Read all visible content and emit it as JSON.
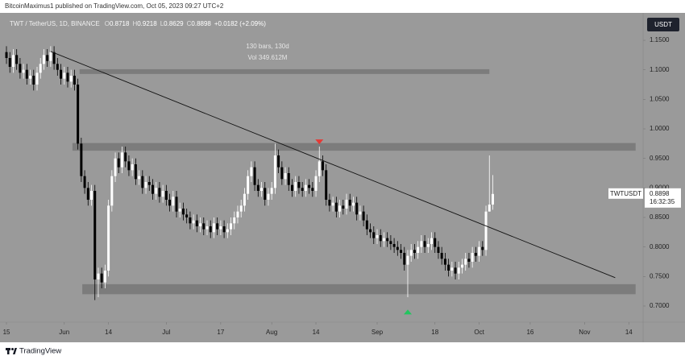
{
  "header": {
    "publisher": "BitcoinMaximus1 published on TradingView.com, Oct 05, 2023 09:27 UTC+2"
  },
  "footer": {
    "brand": "TradingView"
  },
  "chart_data": {
    "type": "candlestick",
    "symbol": "TWT / TetherUS, 1D, BINANCE",
    "ohlc_labels": [
      "O",
      "H",
      "L",
      "C"
    ],
    "change": "+0.0182 (+2.09%)",
    "currency_button": "USDT",
    "measure_annotation": [
      "130 bars, 130d",
      "Vol 349.612M"
    ],
    "price_tag": {
      "symbol": "TWTUSDT",
      "countdown": "16:32:35"
    },
    "up_color": "#ffffff",
    "down_color": "#000000",
    "background": "#9a9a9a",
    "zone_color": "#7c7c7c",
    "trendline_color": "#111111",
    "open": [
      1.13,
      1.12,
      1.105,
      1.125,
      1.11,
      1.095,
      1.1,
      1.085,
      1.09,
      1.075,
      1.095,
      1.11,
      1.125,
      1.115,
      1.13,
      1.11,
      1.1,
      1.085,
      1.095,
      1.08,
      1.09,
      1.075,
      0.975,
      0.92,
      0.9,
      0.88,
      0.895,
      0.745,
      0.755,
      0.74,
      0.76,
      0.87,
      0.92,
      0.95,
      0.935,
      0.96,
      0.945,
      0.93,
      0.94,
      0.915,
      0.92,
      0.9,
      0.91,
      0.905,
      0.89,
      0.9,
      0.885,
      0.895,
      0.88,
      0.87,
      0.885,
      0.86,
      0.865,
      0.855,
      0.85,
      0.84,
      0.845,
      0.835,
      0.84,
      0.83,
      0.835,
      0.825,
      0.84,
      0.83,
      0.835,
      0.825,
      0.83,
      0.84,
      0.85,
      0.86,
      0.87,
      0.89,
      0.92,
      0.935,
      0.905,
      0.895,
      0.9,
      0.88,
      0.89,
      0.9,
      0.955,
      0.935,
      0.915,
      0.925,
      0.905,
      0.895,
      0.91,
      0.9,
      0.895,
      0.905,
      0.9,
      0.895,
      0.92,
      0.945,
      0.93,
      0.88,
      0.87,
      0.875,
      0.86,
      0.87,
      0.865,
      0.88,
      0.87,
      0.875,
      0.855,
      0.86,
      0.845,
      0.83,
      0.825,
      0.815,
      0.82,
      0.81,
      0.815,
      0.81,
      0.805,
      0.8,
      0.795,
      0.79,
      0.77,
      0.785,
      0.795,
      0.79,
      0.8,
      0.81,
      0.8,
      0.805,
      0.815,
      0.8,
      0.79,
      0.78,
      0.77,
      0.76,
      0.765,
      0.755,
      0.765,
      0.77,
      0.78,
      0.775,
      0.79,
      0.785,
      0.8,
      0.795,
      0.86,
      0.8718
    ],
    "high": [
      1.14,
      1.13,
      1.135,
      1.135,
      1.12,
      1.11,
      1.11,
      1.1,
      1.1,
      1.105,
      1.12,
      1.135,
      1.135,
      1.14,
      1.14,
      1.12,
      1.11,
      1.105,
      1.105,
      1.1,
      1.1,
      1.085,
      0.985,
      0.93,
      0.91,
      0.905,
      0.905,
      0.765,
      0.765,
      0.77,
      0.88,
      0.93,
      0.96,
      0.96,
      0.97,
      0.97,
      0.955,
      0.95,
      0.95,
      0.93,
      0.93,
      0.92,
      0.92,
      0.915,
      0.91,
      0.91,
      0.905,
      0.905,
      0.89,
      0.895,
      0.895,
      0.875,
      0.875,
      0.865,
      0.86,
      0.855,
      0.855,
      0.85,
      0.85,
      0.845,
      0.845,
      0.85,
      0.85,
      0.845,
      0.845,
      0.84,
      0.85,
      0.86,
      0.87,
      0.88,
      0.9,
      0.93,
      0.945,
      0.945,
      0.915,
      0.91,
      0.91,
      0.9,
      0.91,
      0.975,
      0.965,
      0.945,
      0.935,
      0.935,
      0.915,
      0.92,
      0.92,
      0.91,
      0.915,
      0.915,
      0.91,
      0.93,
      0.97,
      0.955,
      0.94,
      0.89,
      0.885,
      0.885,
      0.88,
      0.88,
      0.89,
      0.89,
      0.885,
      0.885,
      0.87,
      0.87,
      0.855,
      0.84,
      0.835,
      0.83,
      0.83,
      0.825,
      0.825,
      0.82,
      0.815,
      0.81,
      0.805,
      0.8,
      0.795,
      0.805,
      0.805,
      0.81,
      0.82,
      0.82,
      0.815,
      0.825,
      0.825,
      0.81,
      0.8,
      0.79,
      0.78,
      0.775,
      0.775,
      0.775,
      0.78,
      0.79,
      0.79,
      0.8,
      0.8,
      0.81,
      0.81,
      0.87,
      0.955,
      0.9218
    ],
    "low": [
      1.11,
      1.095,
      1.095,
      1.1,
      1.085,
      1.085,
      1.075,
      1.075,
      1.065,
      1.065,
      1.085,
      1.1,
      1.105,
      1.105,
      1.1,
      1.09,
      1.075,
      1.075,
      1.07,
      1.07,
      1.065,
      0.965,
      0.91,
      0.89,
      0.87,
      0.87,
      0.71,
      0.715,
      0.73,
      0.73,
      0.75,
      0.86,
      0.91,
      0.925,
      0.925,
      0.935,
      0.92,
      0.92,
      0.905,
      0.905,
      0.89,
      0.89,
      0.895,
      0.88,
      0.88,
      0.875,
      0.875,
      0.87,
      0.86,
      0.86,
      0.85,
      0.85,
      0.845,
      0.84,
      0.83,
      0.83,
      0.825,
      0.825,
      0.82,
      0.82,
      0.815,
      0.815,
      0.82,
      0.82,
      0.815,
      0.815,
      0.82,
      0.83,
      0.84,
      0.85,
      0.86,
      0.88,
      0.91,
      0.895,
      0.885,
      0.885,
      0.87,
      0.87,
      0.88,
      0.89,
      0.925,
      0.905,
      0.905,
      0.895,
      0.885,
      0.885,
      0.89,
      0.885,
      0.885,
      0.89,
      0.885,
      0.885,
      0.91,
      0.92,
      0.87,
      0.86,
      0.86,
      0.85,
      0.85,
      0.855,
      0.855,
      0.86,
      0.86,
      0.845,
      0.845,
      0.835,
      0.82,
      0.815,
      0.805,
      0.805,
      0.8,
      0.8,
      0.8,
      0.795,
      0.79,
      0.785,
      0.78,
      0.76,
      0.715,
      0.775,
      0.78,
      0.78,
      0.79,
      0.79,
      0.79,
      0.795,
      0.79,
      0.78,
      0.77,
      0.76,
      0.75,
      0.75,
      0.745,
      0.745,
      0.755,
      0.76,
      0.765,
      0.765,
      0.775,
      0.775,
      0.785,
      0.785,
      0.86,
      0.8629
    ],
    "close": [
      1.12,
      1.105,
      1.125,
      1.11,
      1.095,
      1.1,
      1.085,
      1.09,
      1.075,
      1.095,
      1.11,
      1.125,
      1.115,
      1.13,
      1.11,
      1.1,
      1.085,
      1.095,
      1.08,
      1.09,
      1.075,
      0.975,
      0.92,
      0.9,
      0.88,
      0.895,
      0.745,
      0.755,
      0.74,
      0.76,
      0.87,
      0.92,
      0.95,
      0.935,
      0.96,
      0.945,
      0.93,
      0.94,
      0.915,
      0.92,
      0.9,
      0.91,
      0.905,
      0.89,
      0.9,
      0.885,
      0.895,
      0.88,
      0.87,
      0.885,
      0.86,
      0.865,
      0.855,
      0.85,
      0.84,
      0.845,
      0.835,
      0.84,
      0.83,
      0.835,
      0.825,
      0.84,
      0.83,
      0.835,
      0.825,
      0.83,
      0.84,
      0.85,
      0.86,
      0.87,
      0.89,
      0.92,
      0.935,
      0.905,
      0.895,
      0.9,
      0.88,
      0.89,
      0.9,
      0.955,
      0.935,
      0.915,
      0.925,
      0.905,
      0.895,
      0.91,
      0.9,
      0.895,
      0.905,
      0.9,
      0.895,
      0.92,
      0.945,
      0.93,
      0.88,
      0.87,
      0.875,
      0.86,
      0.87,
      0.865,
      0.88,
      0.87,
      0.875,
      0.855,
      0.86,
      0.845,
      0.83,
      0.825,
      0.815,
      0.82,
      0.81,
      0.815,
      0.81,
      0.805,
      0.8,
      0.795,
      0.79,
      0.77,
      0.785,
      0.795,
      0.79,
      0.8,
      0.81,
      0.8,
      0.805,
      0.815,
      0.8,
      0.79,
      0.78,
      0.77,
      0.76,
      0.765,
      0.755,
      0.765,
      0.77,
      0.78,
      0.775,
      0.79,
      0.785,
      0.8,
      0.795,
      0.86,
      0.8718,
      0.8898
    ],
    "zones": [
      {
        "from": 1.093,
        "to": 1.101,
        "x": [
          21.5,
          142
        ]
      },
      {
        "from": 0.963,
        "to": 0.976,
        "x": [
          19.4,
          185
        ]
      },
      {
        "from": 0.72,
        "to": 0.737,
        "x": [
          22.3,
          185
        ]
      }
    ],
    "trendline": {
      "x": [
        13,
        179
      ],
      "y": [
        1.131,
        0.748
      ]
    },
    "markers": [
      {
        "x": 92,
        "y": 0.978,
        "color": "#e53935",
        "direction": "down"
      },
      {
        "x": 118,
        "y": 0.69,
        "color": "#22c55e",
        "direction": "up"
      }
    ],
    "xlim": [
      -1.9,
      187.2
    ],
    "ylim": [
      0.6727,
      1.1964
    ],
    "xticks": [
      {
        "value": 0,
        "label": "15"
      },
      {
        "value": 17,
        "label": "Jun"
      },
      {
        "value": 30,
        "label": "14"
      },
      {
        "value": 47,
        "label": "Jul"
      },
      {
        "value": 63,
        "label": "17"
      },
      {
        "value": 78,
        "label": "Aug"
      },
      {
        "value": 91,
        "label": "14"
      },
      {
        "value": 109,
        "label": "Sep"
      },
      {
        "value": 126,
        "label": "18"
      },
      {
        "value": 139,
        "label": "Oct"
      },
      {
        "value": 154,
        "label": "16"
      },
      {
        "value": 170,
        "label": "Nov"
      },
      {
        "value": 183,
        "label": "14"
      }
    ],
    "yticks": [
      {
        "value": 1.15,
        "label": "1.1500"
      },
      {
        "value": 1.1,
        "label": "1.1000"
      },
      {
        "value": 1.05,
        "label": "1.0500"
      },
      {
        "value": 1.0,
        "label": "1.0000"
      },
      {
        "value": 0.95,
        "label": "0.9500"
      },
      {
        "value": 0.9,
        "label": "0.9000"
      },
      {
        "value": 0.85,
        "label": "0.8500"
      },
      {
        "value": 0.8,
        "label": "0.8000"
      },
      {
        "value": 0.75,
        "label": "0.7500"
      },
      {
        "value": 0.7,
        "label": "0.7000"
      }
    ]
  }
}
